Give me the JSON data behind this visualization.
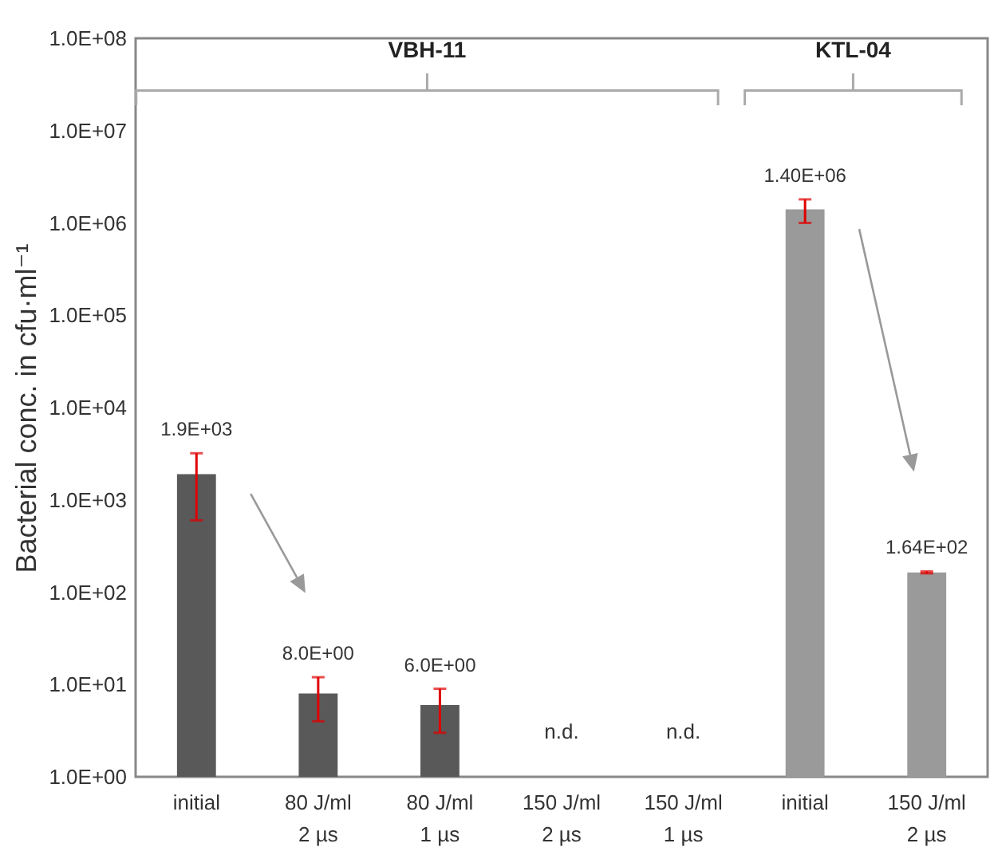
{
  "chart_data": {
    "type": "bar",
    "ylabel": "Bacterial conc. in cfu·ml⁻¹",
    "categories": [
      "initial",
      "80 J/ml\n2 µs",
      "80 J/ml\n1 µs",
      "150 J/ml\n2 µs",
      "150 J/ml\n1 µs",
      "initial",
      "150 J/ml\n2 µs"
    ],
    "values": [
      1900,
      8,
      6,
      null,
      null,
      1400000,
      164
    ],
    "colors": [
      "#595959",
      "#595959",
      "#595959",
      "#595959",
      "#595959",
      "#9a9a9a",
      "#9a9a9a"
    ],
    "errors": [
      [
        600,
        3200
      ],
      [
        4,
        12
      ],
      [
        3,
        9
      ],
      null,
      null,
      [
        1000000,
        1800000
      ],
      [
        160,
        168
      ]
    ],
    "value_labels": [
      "1.9E+03",
      "8.0E+00",
      "6.0E+00",
      null,
      null,
      "1.40E+06",
      "1.64E+02"
    ],
    "log": true,
    "ylim": [
      1,
      100000000
    ],
    "yticks": [
      {
        "value": 1,
        "label": "1.0E+00"
      },
      {
        "value": 10,
        "label": "1.0E+01"
      },
      {
        "value": 100,
        "label": "1.0E+02"
      },
      {
        "value": 1000,
        "label": "1.0E+03"
      },
      {
        "value": 10000,
        "label": "1.0E+04"
      },
      {
        "value": 100000,
        "label": "1.0E+05"
      },
      {
        "value": 1000000,
        "label": "1.0E+06"
      },
      {
        "value": 10000000,
        "label": "1.0E+07"
      },
      {
        "value": 100000000,
        "label": "1.0E+08"
      }
    ],
    "grid": false,
    "annotations": [
      "VBH-11",
      "KTL-04",
      "n.d.",
      "n.d."
    ]
  }
}
